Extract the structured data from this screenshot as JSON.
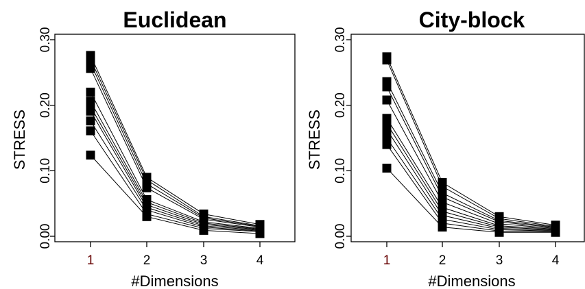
{
  "chart_data": [
    {
      "type": "line",
      "title": "Euclidean",
      "xlabel": "#Dimensions",
      "ylabel": "STRESS",
      "categories": [
        "1",
        "2",
        "3",
        "4"
      ],
      "x_tick_colors": [
        "#660000",
        "#000000",
        "#000000",
        "#000000"
      ],
      "y_ticks": [
        "0.00",
        "0.10",
        "0.20",
        "0.30"
      ],
      "ylim": [
        0,
        0.3
      ],
      "grid": false,
      "marker": "filled-square",
      "color": "#000000",
      "series": [
        {
          "values": [
            0.276,
            0.09,
            0.034,
            0.018
          ]
        },
        {
          "values": [
            0.27,
            0.086,
            0.03,
            0.016
          ]
        },
        {
          "values": [
            0.264,
            0.08,
            0.028,
            0.015
          ]
        },
        {
          "values": [
            0.256,
            0.074,
            0.026,
            0.014
          ]
        },
        {
          "values": [
            0.22,
            0.056,
            0.022,
            0.012
          ]
        },
        {
          "values": [
            0.206,
            0.052,
            0.02,
            0.011
          ]
        },
        {
          "values": [
            0.198,
            0.048,
            0.018,
            0.01
          ]
        },
        {
          "values": [
            0.191,
            0.044,
            0.016,
            0.009
          ]
        },
        {
          "values": [
            0.176,
            0.04,
            0.014,
            0.008
          ]
        },
        {
          "values": [
            0.161,
            0.034,
            0.012,
            0.007
          ]
        },
        {
          "values": [
            0.124,
            0.03,
            0.009,
            0.004
          ]
        }
      ]
    },
    {
      "type": "line",
      "title": "City-block",
      "xlabel": "#Dimensions",
      "ylabel": "STRESS",
      "categories": [
        "1",
        "2",
        "3",
        "4"
      ],
      "x_tick_colors": [
        "#660000",
        "#000000",
        "#000000",
        "#000000"
      ],
      "y_ticks": [
        "0.00",
        "0.10",
        "0.20",
        "0.30"
      ],
      "ylim": [
        0,
        0.3
      ],
      "grid": false,
      "marker": "filled-square",
      "color": "#000000",
      "series": [
        {
          "values": [
            0.274,
            0.082,
            0.03,
            0.017
          ]
        },
        {
          "values": [
            0.269,
            0.076,
            0.027,
            0.015
          ]
        },
        {
          "values": [
            0.236,
            0.066,
            0.024,
            0.014
          ]
        },
        {
          "values": [
            0.228,
            0.06,
            0.022,
            0.013
          ]
        },
        {
          "values": [
            0.208,
            0.052,
            0.019,
            0.012
          ]
        },
        {
          "values": [
            0.18,
            0.044,
            0.016,
            0.011
          ]
        },
        {
          "values": [
            0.172,
            0.038,
            0.014,
            0.01
          ]
        },
        {
          "values": [
            0.163,
            0.032,
            0.012,
            0.009
          ]
        },
        {
          "values": [
            0.15,
            0.026,
            0.01,
            0.008
          ]
        },
        {
          "values": [
            0.14,
            0.02,
            0.008,
            0.007
          ]
        },
        {
          "values": [
            0.104,
            0.014,
            0.006,
            0.006
          ]
        }
      ]
    }
  ]
}
